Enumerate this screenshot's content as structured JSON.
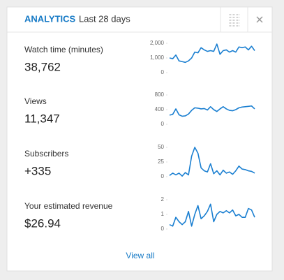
{
  "header": {
    "title": "ANALYTICS",
    "period": "Last 28 days"
  },
  "metrics": [
    {
      "label": "Watch time (minutes)",
      "value": "38,762",
      "sparkline": {
        "ylim": [
          0,
          2000
        ],
        "yticks": [
          0,
          {
            "value": 1000,
            "label": "1,000"
          },
          {
            "value": 2000,
            "label": "2,000"
          }
        ],
        "color": "#1a7fd1",
        "values": [
          1000,
          950,
          1200,
          800,
          750,
          700,
          800,
          1000,
          1400,
          1350,
          1700,
          1550,
          1450,
          1500,
          1450,
          1950,
          1250,
          1500,
          1550,
          1400,
          1500,
          1400,
          1750,
          1700,
          1750,
          1550,
          1800,
          1500
        ]
      }
    },
    {
      "label": "Views",
      "value": "11,347",
      "sparkline": {
        "ylim": [
          0,
          800
        ],
        "yticks": [
          0,
          400,
          800
        ],
        "color": "#1a7fd1",
        "values": [
          250,
          270,
          420,
          260,
          220,
          230,
          280,
          380,
          450,
          440,
          420,
          430,
          390,
          480,
          400,
          350,
          420,
          480,
          420,
          380,
          370,
          400,
          450,
          470,
          480,
          490,
          500,
          420
        ]
      }
    },
    {
      "label": "Subscribers",
      "value": "+335",
      "sparkline": {
        "ylim": [
          0,
          50
        ],
        "yticks": [
          0,
          25,
          50
        ],
        "color": "#1a7fd1",
        "values": [
          2,
          6,
          3,
          6,
          1,
          7,
          3,
          35,
          50,
          40,
          15,
          10,
          8,
          22,
          5,
          10,
          3,
          11,
          6,
          8,
          4,
          10,
          18,
          13,
          12,
          10,
          9,
          6
        ]
      }
    },
    {
      "label": "Your estimated revenue",
      "value": "$26.94",
      "sparkline": {
        "ylim": [
          0,
          2
        ],
        "yticks": [
          0,
          1,
          2
        ],
        "color": "#1a7fd1",
        "values": [
          0.3,
          0.2,
          0.8,
          0.5,
          0.3,
          0.5,
          1.2,
          0.2,
          1.0,
          1.6,
          0.7,
          0.9,
          1.2,
          1.7,
          0.5,
          1.0,
          1.2,
          1.1,
          1.25,
          1.1,
          1.3,
          0.9,
          1.0,
          0.8,
          0.8,
          1.4,
          1.3,
          0.8
        ]
      }
    }
  ],
  "footer": {
    "link": "View all"
  }
}
